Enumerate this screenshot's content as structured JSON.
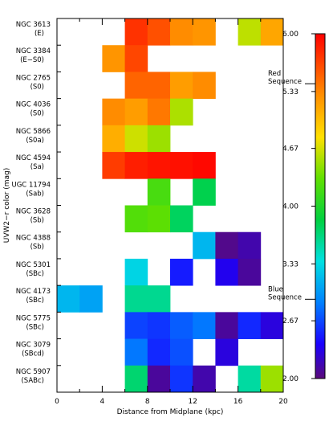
{
  "chart_data": {
    "type": "heatmap",
    "xlabel": "Distance from Midplane (kpc)",
    "ylabel": "UVW2−r color (mag)",
    "xlim": [
      0,
      20
    ],
    "x_ticks": [
      0,
      4,
      8,
      12,
      16,
      20
    ],
    "x_bin_width": 2,
    "rows": [
      {
        "name": "NGC 3613",
        "type": "(E)"
      },
      {
        "name": "NGC 3384",
        "type": "(E−S0)"
      },
      {
        "name": "NGC 2765",
        "type": "(S0)"
      },
      {
        "name": "NGC 4036",
        "type": "(S0)"
      },
      {
        "name": "NGC 5866",
        "type": "(S0a)"
      },
      {
        "name": "NGC 4594",
        "type": "(Sa)"
      },
      {
        "name": "UGC 11794",
        "type": "(Sab)"
      },
      {
        "name": "NGC 3628",
        "type": "(Sb)"
      },
      {
        "name": "NGC 4388",
        "type": "(Sb)"
      },
      {
        "name": "NGC 5301",
        "type": "(SBc)"
      },
      {
        "name": "NGC 4173",
        "type": "(SBc)"
      },
      {
        "name": "NGC 5775",
        "type": "(SBc)"
      },
      {
        "name": "NGC 3079",
        "type": "(SBcd)"
      },
      {
        "name": "NGC 5907",
        "type": "(SABc)"
      }
    ],
    "values": [
      [
        null,
        null,
        null,
        5.75,
        5.6,
        5.3,
        5.25,
        null,
        4.6,
        5.15
      ],
      [
        null,
        null,
        5.25,
        5.65,
        null,
        null,
        null,
        null,
        null,
        null
      ],
      [
        null,
        null,
        null,
        5.5,
        5.5,
        5.2,
        5.3,
        null,
        null,
        null
      ],
      [
        null,
        null,
        5.3,
        5.2,
        5.4,
        4.55,
        null,
        null,
        null,
        null
      ],
      [
        null,
        null,
        5.1,
        4.65,
        4.5,
        null,
        null,
        null,
        null,
        null
      ],
      [
        null,
        null,
        5.7,
        5.85,
        5.9,
        5.92,
        5.96,
        null,
        null,
        null
      ],
      [
        null,
        null,
        null,
        null,
        4.2,
        null,
        3.8,
        null,
        null,
        null
      ],
      [
        null,
        null,
        null,
        4.25,
        4.3,
        3.75,
        null,
        null,
        null,
        null
      ],
      [
        null,
        null,
        null,
        null,
        null,
        null,
        3.15,
        2.05,
        2.15,
        null
      ],
      [
        null,
        null,
        null,
        3.3,
        null,
        2.5,
        null,
        2.35,
        2.1,
        null
      ],
      [
        3.15,
        3.05,
        null,
        3.6,
        3.6,
        null,
        null,
        null,
        null,
        null
      ],
      [
        null,
        null,
        null,
        2.65,
        2.6,
        2.75,
        2.85,
        2.1,
        2.55,
        2.3
      ],
      [
        null,
        null,
        null,
        2.85,
        2.55,
        2.7,
        null,
        2.3,
        null,
        null
      ],
      [
        null,
        null,
        null,
        3.7,
        2.1,
        2.6,
        2.15,
        null,
        3.55,
        4.5
      ]
    ],
    "colorbar": {
      "min": 2.0,
      "max": 6.0,
      "ticks": [
        "6.00",
        "5.33",
        "4.67",
        "4.00",
        "3.33",
        "2.67",
        "2.00"
      ],
      "annotations": [
        {
          "lines": [
            "Red",
            "Sequence"
          ],
          "value": 5.42
        },
        {
          "lines": [
            "Blue",
            "Sequence"
          ],
          "value": 2.92
        }
      ]
    }
  }
}
